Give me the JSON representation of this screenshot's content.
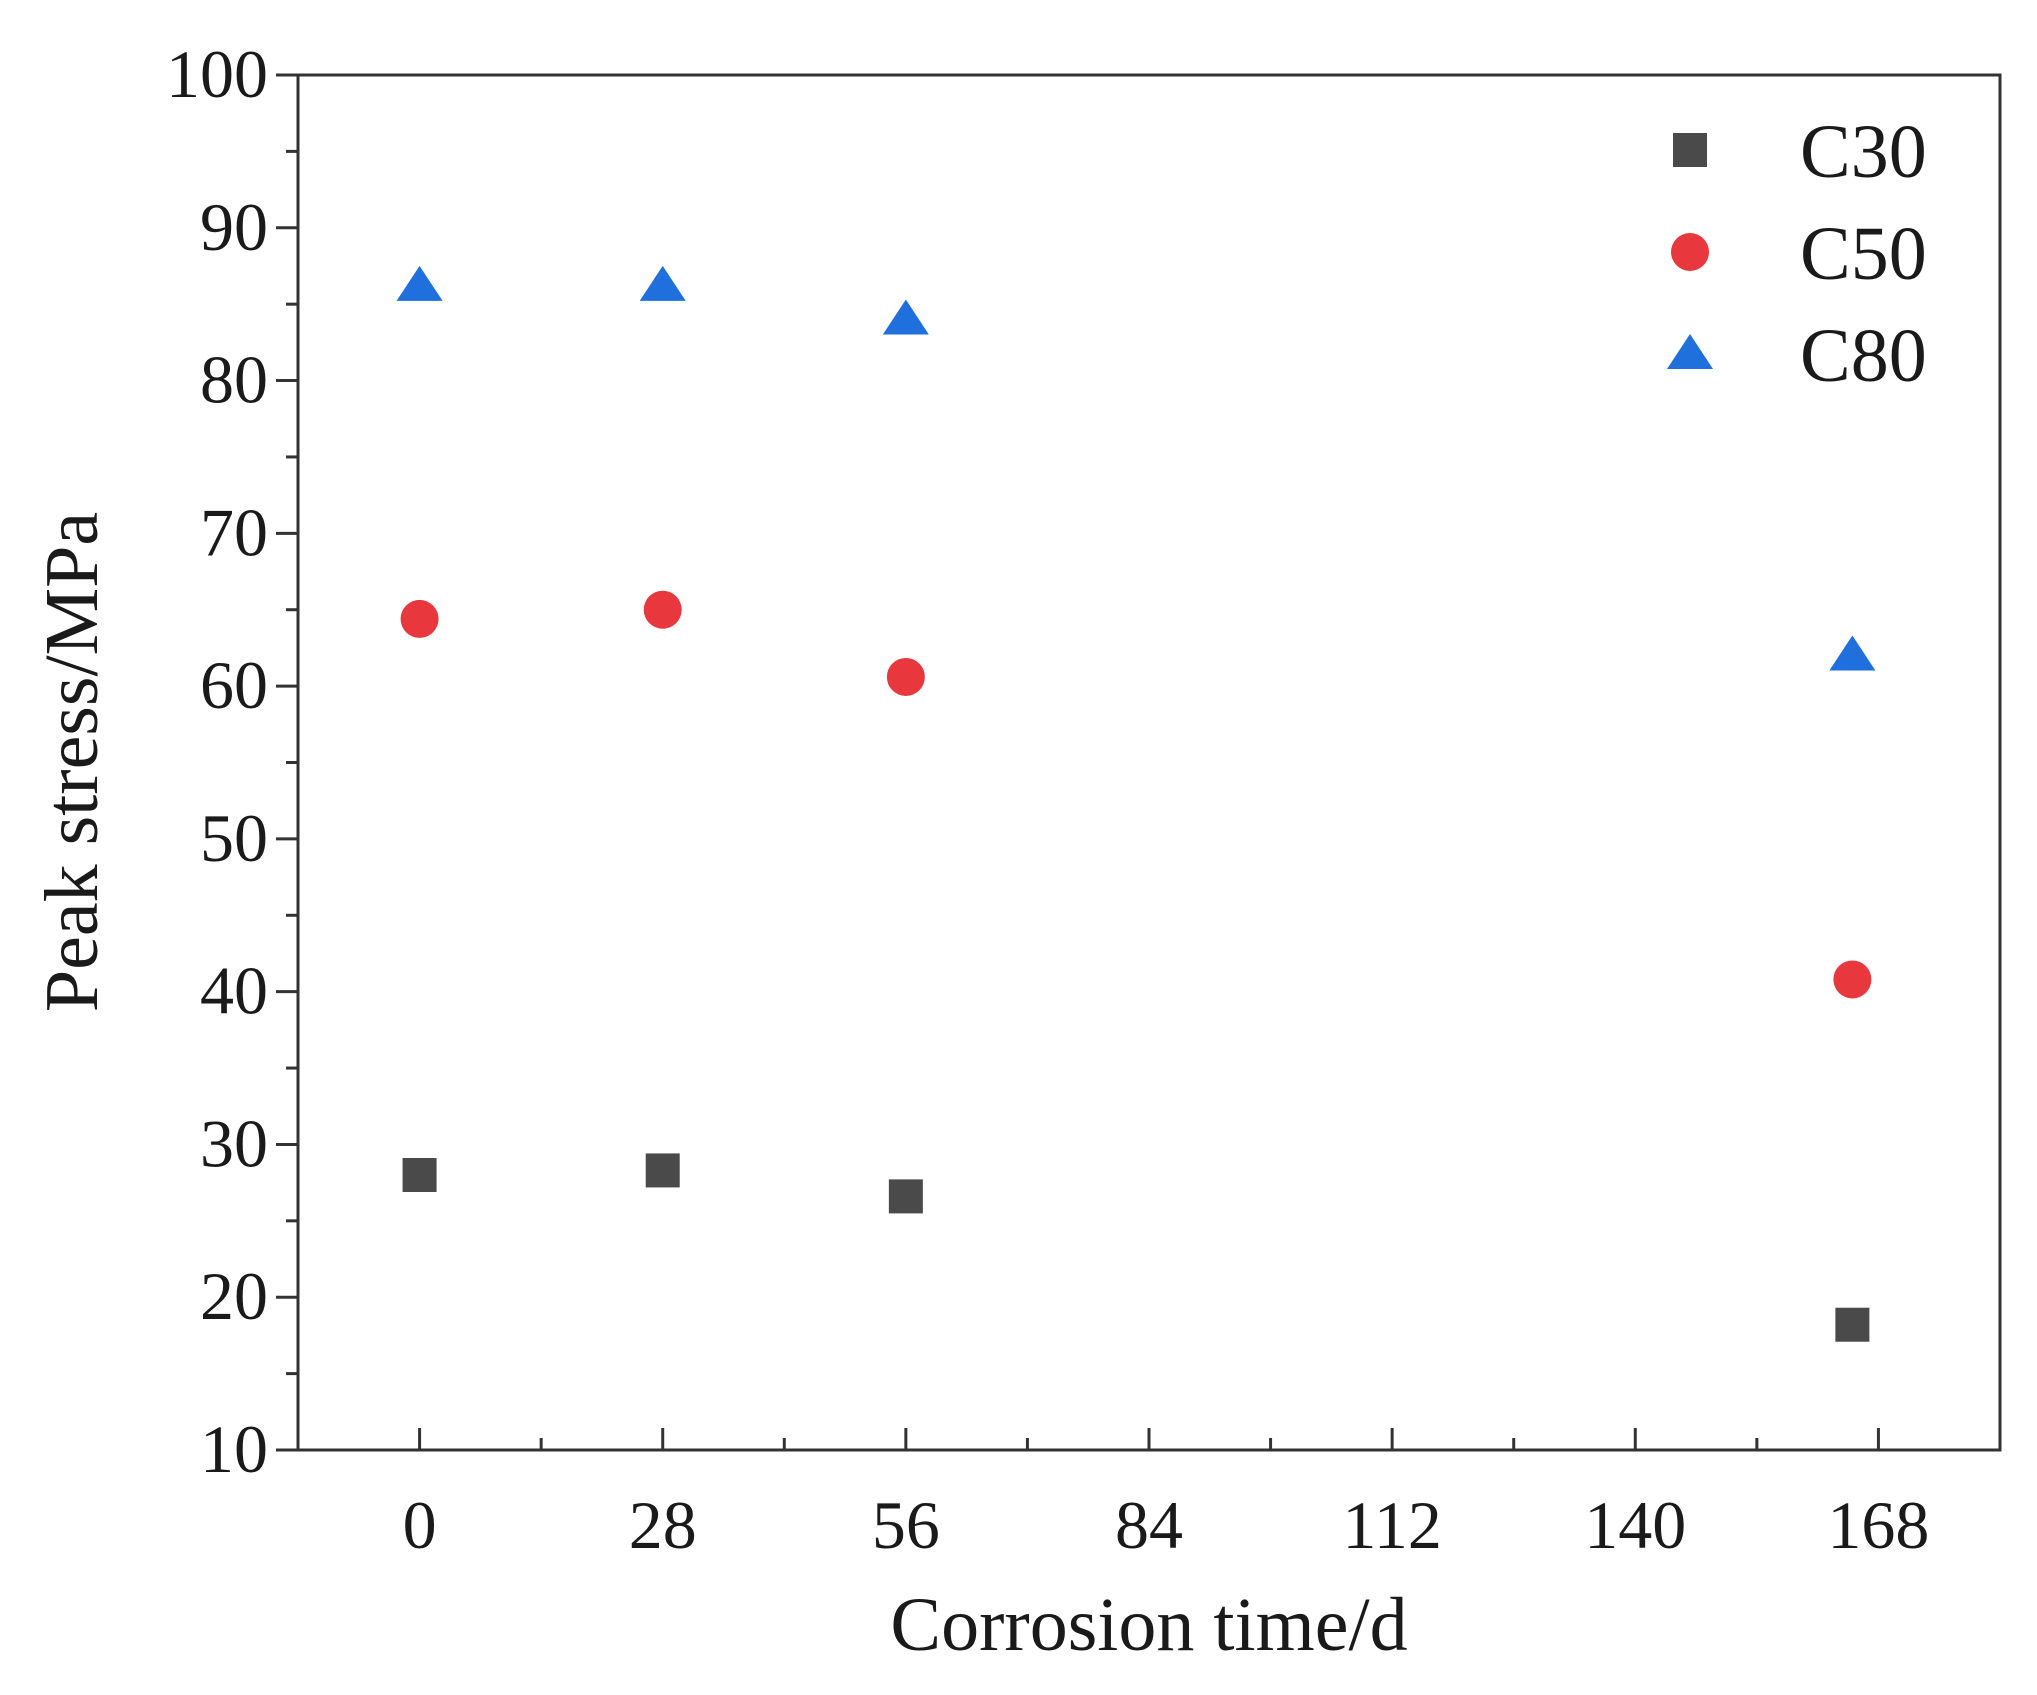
{
  "chart_data": {
    "type": "scatter",
    "title": "",
    "xlabel": "Corrosion time/d",
    "ylabel": "Peak stress/MPa",
    "x_ticks": [
      0,
      28,
      56,
      84,
      112,
      140,
      168
    ],
    "x_tick_labels": [
      "0",
      "28",
      "56",
      "84",
      "112",
      "140",
      "168"
    ],
    "y_ticks": [
      10,
      20,
      30,
      40,
      50,
      60,
      70,
      80,
      90,
      100
    ],
    "y_tick_labels": [
      "10",
      "20",
      "30",
      "40",
      "50",
      "60",
      "70",
      "80",
      "90",
      "100"
    ],
    "xlim": [
      -14,
      182
    ],
    "ylim": [
      10,
      100
    ],
    "grid": false,
    "legend_position": "top-right",
    "series": [
      {
        "name": "C30",
        "marker": "square",
        "color": "#4a4a4a",
        "x": [
          0,
          28,
          56,
          165
        ],
        "y": [
          28.0,
          28.3,
          26.6,
          18.2
        ]
      },
      {
        "name": "C50",
        "marker": "circle",
        "color": "#e8383d",
        "x": [
          0,
          28,
          56,
          165
        ],
        "y": [
          64.4,
          65.0,
          60.6,
          40.8
        ]
      },
      {
        "name": "C80",
        "marker": "triangle",
        "color": "#1f6fdc",
        "x": [
          0,
          28,
          56,
          165
        ],
        "y": [
          86.2,
          86.2,
          84.0,
          62.0
        ]
      }
    ]
  }
}
